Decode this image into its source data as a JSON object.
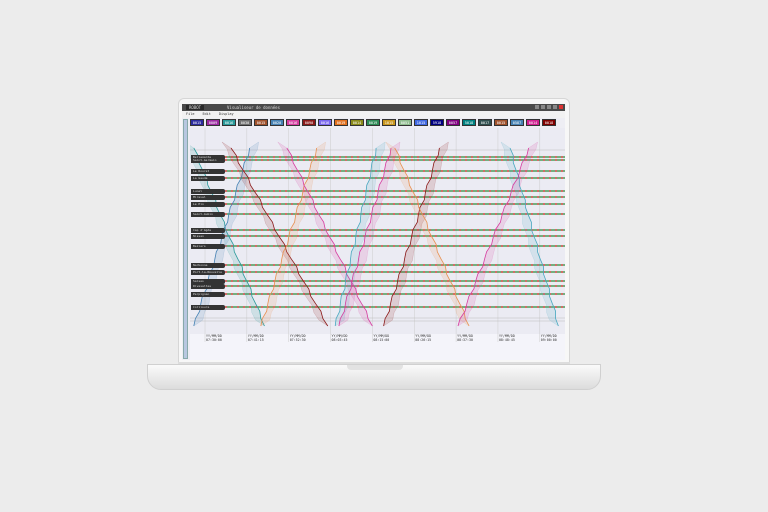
{
  "app": {
    "logo": "ROBOT",
    "title": "Visualiseur de données"
  },
  "menu": [
    "File",
    "Edit",
    "Display"
  ],
  "trains": [
    {
      "id": "0015",
      "color": "#2b2b9e"
    },
    {
      "id": "0009",
      "color": "#9b2aa0"
    },
    {
      "id": "0016",
      "color": "#2a9a9a"
    },
    {
      "id": "0030",
      "color": "#707070"
    },
    {
      "id": "0015",
      "color": "#a0522d"
    },
    {
      "id": "0020",
      "color": "#4682b4"
    },
    {
      "id": "0016",
      "color": "#d63ea0"
    },
    {
      "id": "0090",
      "color": "#8b1a1a"
    },
    {
      "id": "0016",
      "color": "#7b68ee"
    },
    {
      "id": "0019",
      "color": "#e07020"
    },
    {
      "id": "0014",
      "color": "#8a8a1a"
    },
    {
      "id": "0019",
      "color": "#2e8b57"
    },
    {
      "id": "1015",
      "color": "#c8961e"
    },
    {
      "id": "0051",
      "color": "#8fbc8f"
    },
    {
      "id": "1015",
      "color": "#4169e1"
    },
    {
      "id": "5918",
      "color": "#000080"
    },
    {
      "id": "0057",
      "color": "#800080"
    },
    {
      "id": "5018",
      "color": "#008080"
    },
    {
      "id": "0017",
      "color": "#2f4f4f"
    },
    {
      "id": "0015",
      "color": "#a0522d"
    },
    {
      "id": "0587",
      "color": "#4682b4"
    },
    {
      "id": "0014",
      "color": "#d02090"
    },
    {
      "id": "0018",
      "color": "#800000"
    }
  ],
  "stations": [
    "Bellegarde",
    "Saint-Germain",
    "Le Rouret",
    "La Gaude",
    "Lunel",
    "Mireval",
    "Le Pin",
    "Saint-Aubin",
    "Cap d'Agde",
    "Nissan",
    "Beziers",
    "Narbonne",
    "Port-la-Nouvelle",
    "Salses",
    "Rivesaltes",
    "Perpignan",
    "Collioure"
  ],
  "time_axis": {
    "date": "YY/MM/DD",
    "ticks": [
      "07:30:00",
      "07:41:15",
      "07:52:30",
      "08:03:45",
      "08:15:00",
      "08:26:15",
      "08:37:30",
      "08:48:45",
      "09:00:00"
    ]
  },
  "chart_data": {
    "type": "line",
    "x_range": [
      "07:25",
      "09:05"
    ],
    "series": [
      {
        "color": "#2a9a9a",
        "start": "07:27",
        "end": "07:46"
      },
      {
        "color": "#4682b4",
        "start": "07:42",
        "end": "07:27"
      },
      {
        "color": "#8b1a1a",
        "start": "07:37",
        "end": "08:03"
      },
      {
        "color": "#e89050",
        "start": "08:00",
        "end": "07:45"
      },
      {
        "color": "#d63ea0",
        "start": "07:52",
        "end": "08:15"
      },
      {
        "color": "#4aa8c0",
        "start": "08:16",
        "end": "08:05"
      },
      {
        "color": "#d63ea0",
        "start": "08:20",
        "end": "08:06"
      },
      {
        "color": "#8b1a1a",
        "start": "08:33",
        "end": "08:18"
      },
      {
        "color": "#e89050",
        "start": "08:21",
        "end": "08:41"
      },
      {
        "color": "#4aa8c0",
        "start": "08:52",
        "end": "09:05"
      },
      {
        "color": "#d63ea0",
        "start": "08:57",
        "end": "08:38"
      }
    ]
  }
}
